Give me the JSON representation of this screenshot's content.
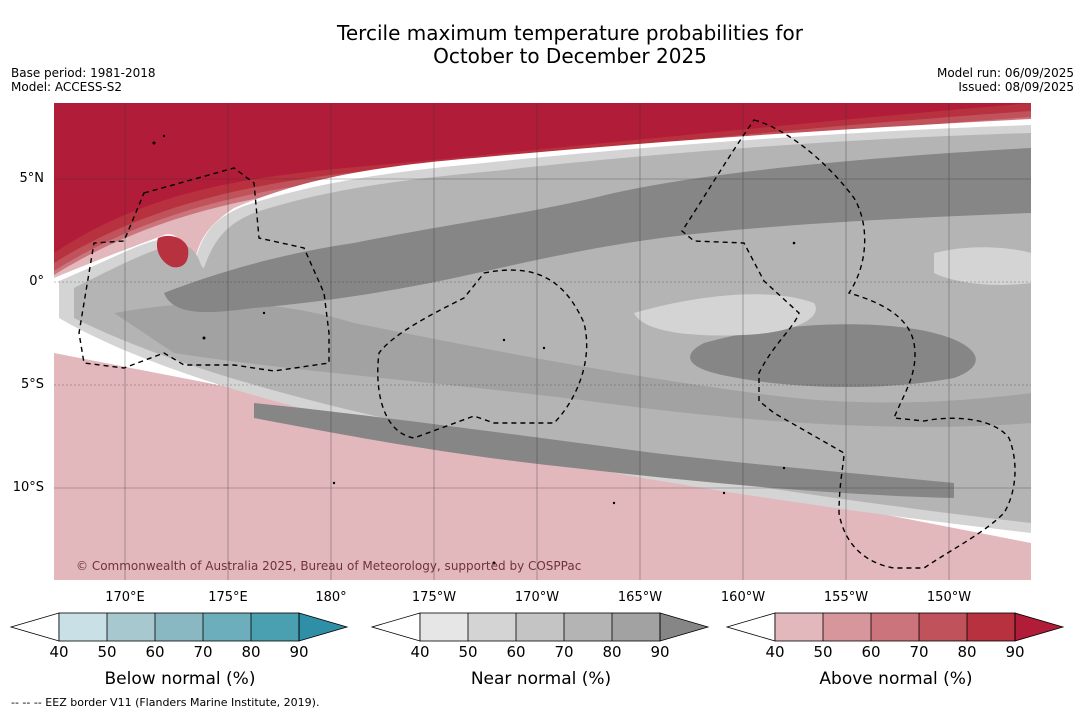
{
  "title_line1": "Tercile maximum temperature probabilities for",
  "title_line2": "October to December 2025",
  "meta_left": [
    "Base period: 1981-2018",
    "Model: ACCESS-S2"
  ],
  "meta_right": [
    "Model run: 06/09/2025",
    "Issued: 08/09/2025"
  ],
  "map": {
    "lat_labels": [
      "5°N",
      "0°",
      "5°S",
      "10°S"
    ],
    "lon_labels": [
      "170°E",
      "175°E",
      "180°",
      "175°W",
      "170°W",
      "165°W",
      "160°W",
      "155°W",
      "150°W"
    ],
    "copyright": "© Commonwealth of Australia 2025, Bureau of Meteorology, supported by COSPPac",
    "colors": {
      "above": [
        "#e2b8bc",
        "#d7969b",
        "#cb747c",
        "#c0525c",
        "#b8313f",
        "#b11c38"
      ],
      "near": [
        "#e6e6e6",
        "#d4d4d4",
        "#c4c4c4",
        "#b4b4b4",
        "#a2a2a2",
        "#868686"
      ],
      "below": [
        "#c9e0e6",
        "#a8c8cf",
        "#8ab8c2",
        "#6caebb",
        "#4a9fb0",
        "#2e8fa6"
      ]
    }
  },
  "colorbars": [
    {
      "name": "below",
      "label": "Below normal (%)",
      "ticks": [
        "40",
        "50",
        "60",
        "70",
        "80",
        "90"
      ]
    },
    {
      "name": "near",
      "label": "Near normal (%)",
      "ticks": [
        "40",
        "50",
        "60",
        "70",
        "80",
        "90"
      ]
    },
    {
      "name": "above",
      "label": "Above normal (%)",
      "ticks": [
        "40",
        "50",
        "60",
        "70",
        "80",
        "90"
      ]
    }
  ],
  "footnote": "--  --  -- EEZ border V11 (Flanders Marine Institute, 2019)."
}
